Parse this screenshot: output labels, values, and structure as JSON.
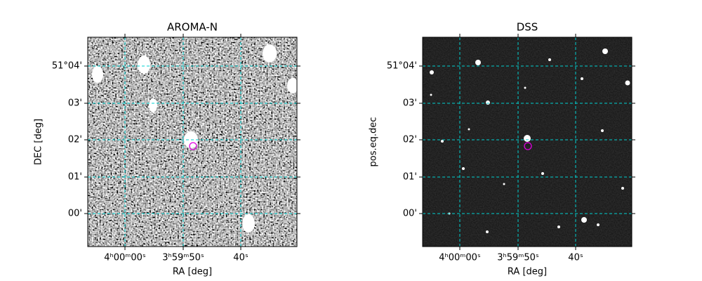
{
  "panels": [
    {
      "title": "AROMA-N",
      "x_label": "RA [deg]",
      "y_label": "DEC [deg]",
      "x_tick_labels": [
        "4ʰ00ᵐ00ˢ",
        "3ʰ59ᵐ50ˢ",
        "40ˢ"
      ],
      "y_tick_labels": [
        "51°04'",
        "03'",
        "02'",
        "01'",
        "00'"
      ]
    },
    {
      "title": "DSS",
      "x_label": "RA [deg]",
      "y_label": "pos.eq.dec",
      "x_tick_labels": [
        "4ʰ00ᵐ00ˢ",
        "3ʰ59ᵐ50ˢ",
        "40ˢ"
      ],
      "y_tick_labels": [
        "51°04'",
        "03'",
        "02'",
        "01'",
        "00'"
      ]
    }
  ]
}
